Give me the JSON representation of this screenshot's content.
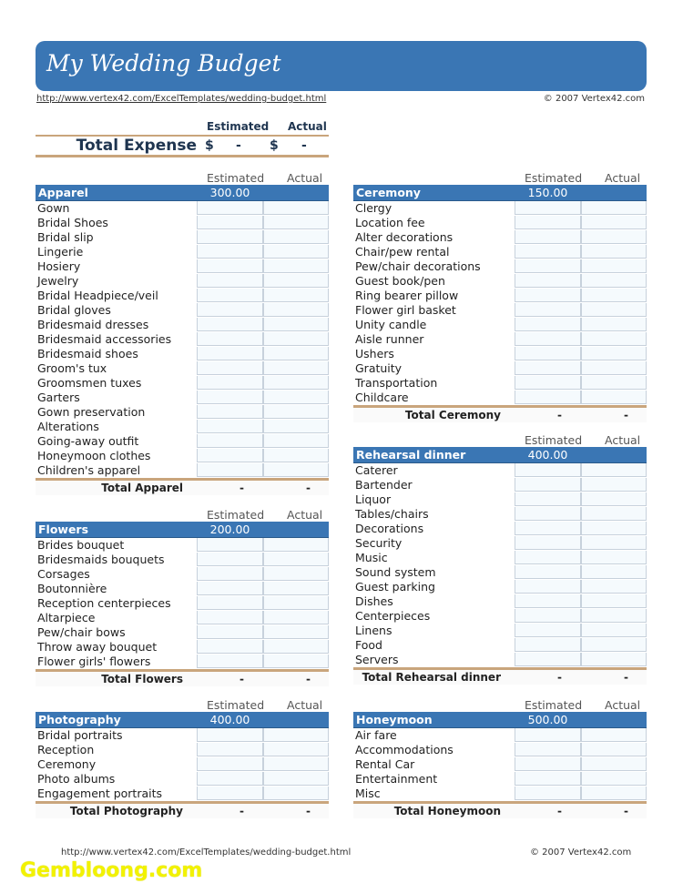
{
  "title": "My Wedding Budget",
  "url": "http://www.vertex42.com/ExcelTemplates/wedding-budget.html",
  "copyright": "© 2007 Vertex42.com",
  "total_expense": {
    "estimated_label": "Estimated",
    "actual_label": "Actual",
    "label": "Total Expense",
    "currency": "$",
    "estimated": "-",
    "actual": "-"
  },
  "col_estimated": "Estimated",
  "col_actual": "Actual",
  "sections": [
    {
      "name": "Apparel",
      "estimated": "300.00",
      "items": [
        "Gown",
        "Bridal Shoes",
        "Bridal slip",
        "Lingerie",
        "Hosiery",
        "Jewelry",
        "Bridal Headpiece/veil",
        "Bridal gloves",
        "Bridesmaid dresses",
        "Bridesmaid accessories",
        "Bridesmaid shoes",
        "Groom's tux",
        "Groomsmen tuxes",
        "Garters",
        "Gown preservation",
        "Alterations",
        "Going-away outfit",
        "Honeymoon clothes",
        "Children's apparel"
      ],
      "total_label": "Total Apparel",
      "total_est": "-",
      "total_act": "-"
    },
    {
      "name": "Flowers",
      "estimated": "200.00",
      "items": [
        "Brides bouquet",
        "Bridesmaids bouquets",
        "Corsages",
        "Boutonnière",
        "Reception centerpieces",
        "Altarpiece",
        "Pew/chair bows",
        "Throw away bouquet",
        "Flower girls' flowers"
      ],
      "total_label": "Total Flowers",
      "total_est": "-",
      "total_act": "-"
    },
    {
      "name": "Photography",
      "estimated": "400.00",
      "items": [
        "Bridal portraits",
        "Reception",
        "Ceremony",
        "Photo albums",
        "Engagement portraits"
      ],
      "total_label": "Total Photography",
      "total_est": "-",
      "total_act": "-"
    },
    {
      "name": "Ceremony",
      "estimated": "150.00",
      "items": [
        "Clergy",
        "Location fee",
        "Alter decorations",
        "Chair/pew rental",
        "Pew/chair decorations",
        "Guest book/pen",
        "Ring bearer pillow",
        "Flower girl basket",
        "Unity candle",
        "Aisle runner",
        "Ushers",
        "Gratuity",
        "Transportation",
        "Childcare"
      ],
      "total_label": "Total Ceremony",
      "total_est": "-",
      "total_act": "-"
    },
    {
      "name": "Rehearsal dinner",
      "estimated": "400.00",
      "items": [
        "Caterer",
        "Bartender",
        "Liquor",
        "Tables/chairs",
        "Decorations",
        "Security",
        "Music",
        "Sound system",
        "Guest parking",
        "Dishes",
        "Centerpieces",
        "Linens",
        "Food",
        "Servers"
      ],
      "total_label": "Total Rehearsal dinner",
      "total_est": "-",
      "total_act": "-"
    },
    {
      "name": "Honeymoon",
      "estimated": "500.00",
      "items": [
        "Air fare",
        "Accommodations",
        "Rental Car",
        "Entertainment",
        "Misc"
      ],
      "total_label": "Total Honeymoon",
      "total_est": "-",
      "total_act": "-"
    }
  ],
  "watermark": "Gembloong.com",
  "colors": {
    "header_blue": "#3a76b4",
    "rule_tan": "#c9a57c"
  }
}
